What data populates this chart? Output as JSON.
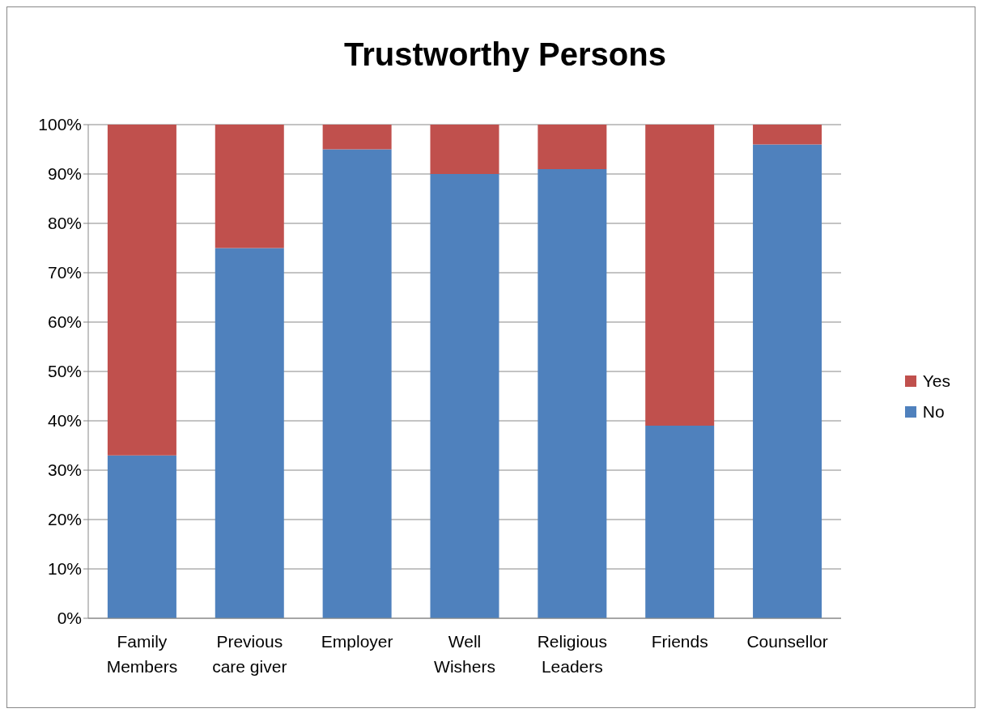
{
  "chart_data": {
    "type": "bar",
    "title": "Trustworthy Persons",
    "categories": [
      "Family Members",
      "Previous care giver",
      "Employer",
      "Well Wishers",
      "Religious Leaders",
      "Friends",
      "Counsellor"
    ],
    "series": [
      {
        "name": "No",
        "color": "#4f81bd",
        "values": [
          33,
          75,
          95,
          90,
          91,
          39,
          96
        ]
      },
      {
        "name": "Yes",
        "color": "#c0504d",
        "values": [
          67,
          25,
          5,
          10,
          9,
          61,
          4
        ]
      }
    ],
    "stacked": true,
    "ylim": [
      0,
      100
    ],
    "yticks": [
      {
        "value": 0,
        "label": "0%"
      },
      {
        "value": 10,
        "label": "10%"
      },
      {
        "value": 20,
        "label": "20%"
      },
      {
        "value": 30,
        "label": "30%"
      },
      {
        "value": 40,
        "label": "40%"
      },
      {
        "value": 50,
        "label": "50%"
      },
      {
        "value": 60,
        "label": "60%"
      },
      {
        "value": 70,
        "label": "70%"
      },
      {
        "value": 80,
        "label": "80%"
      },
      {
        "value": 90,
        "label": "90%"
      },
      {
        "value": 100,
        "label": "100%"
      }
    ],
    "grid": "y",
    "legend": "right"
  }
}
